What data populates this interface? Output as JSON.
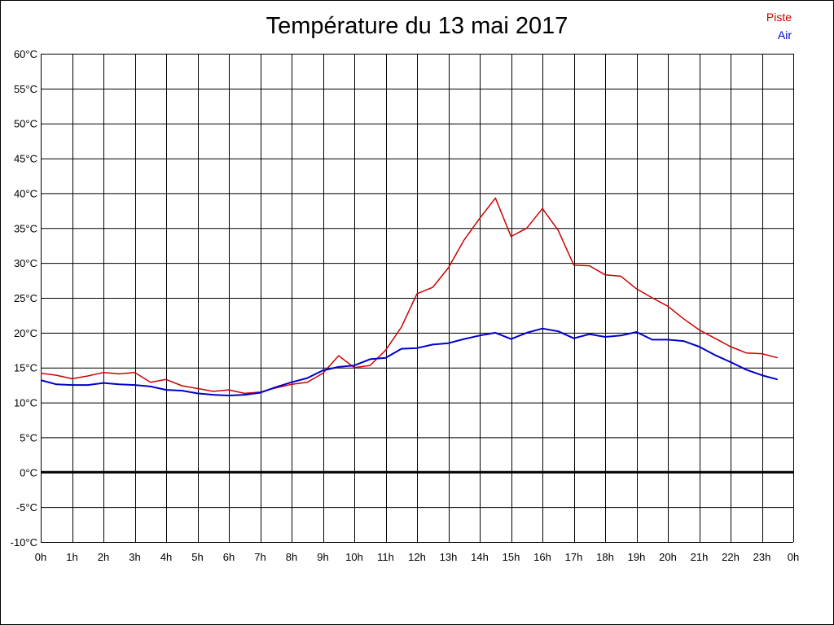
{
  "chart_data": {
    "type": "line",
    "title": "Température du 13 mai 2017",
    "xlabel": "",
    "ylabel": "",
    "ylim": [
      -10,
      60
    ],
    "y_step": 5,
    "y_unit": "°C",
    "x_tick_labels": [
      "0h",
      "1h",
      "2h",
      "3h",
      "4h",
      "5h",
      "6h",
      "7h",
      "8h",
      "9h",
      "10h",
      "11h",
      "12h",
      "13h",
      "14h",
      "15h",
      "16h",
      "17h",
      "18h",
      "19h",
      "20h",
      "21h",
      "22h",
      "23h",
      "0h"
    ],
    "grid": true,
    "legend_position": "top-right",
    "x_hours": [
      0,
      0.5,
      1,
      1.5,
      2,
      2.5,
      3,
      3.5,
      4,
      4.5,
      5,
      5.5,
      6,
      6.5,
      7,
      7.5,
      8,
      8.5,
      9,
      9.5,
      10,
      10.5,
      11,
      11.5,
      12,
      12.5,
      13,
      13.5,
      14,
      14.5,
      15,
      15.5,
      16,
      16.5,
      17,
      17.5,
      18,
      18.5,
      19,
      19.5,
      20,
      20.5,
      21,
      21.5,
      22,
      22.5,
      23,
      23.5
    ],
    "series": [
      {
        "name": "Piste",
        "color": "#cc0000",
        "values": [
          14.2,
          13.9,
          13.4,
          13.8,
          14.3,
          14.1,
          14.3,
          12.9,
          13.3,
          12.4,
          12.0,
          11.6,
          11.8,
          11.3,
          11.5,
          12.1,
          12.6,
          12.9,
          14.2,
          16.7,
          15.0,
          15.3,
          17.5,
          20.8,
          25.6,
          26.5,
          29.3,
          33.3,
          36.4,
          39.3,
          33.8,
          35.0,
          37.8,
          34.7,
          29.7,
          29.6,
          28.3,
          28.1,
          26.3,
          25.0,
          23.8,
          22.0,
          20.4,
          19.2,
          18.0,
          17.1,
          17.0,
          16.4
        ]
      },
      {
        "name": "Air",
        "color": "#0000cc",
        "values": [
          13.2,
          12.6,
          12.5,
          12.5,
          12.8,
          12.6,
          12.5,
          12.3,
          11.8,
          11.7,
          11.3,
          11.1,
          11.0,
          11.1,
          11.4,
          12.2,
          12.9,
          13.5,
          14.6,
          15.1,
          15.3,
          16.2,
          16.4,
          17.7,
          17.8,
          18.3,
          18.5,
          19.1,
          19.6,
          20.0,
          19.1,
          20.0,
          20.6,
          20.2,
          19.2,
          19.8,
          19.4,
          19.6,
          20.1,
          19.0,
          19.0,
          18.8,
          18.0,
          16.8,
          15.8,
          14.7,
          13.9,
          13.3
        ]
      }
    ]
  }
}
